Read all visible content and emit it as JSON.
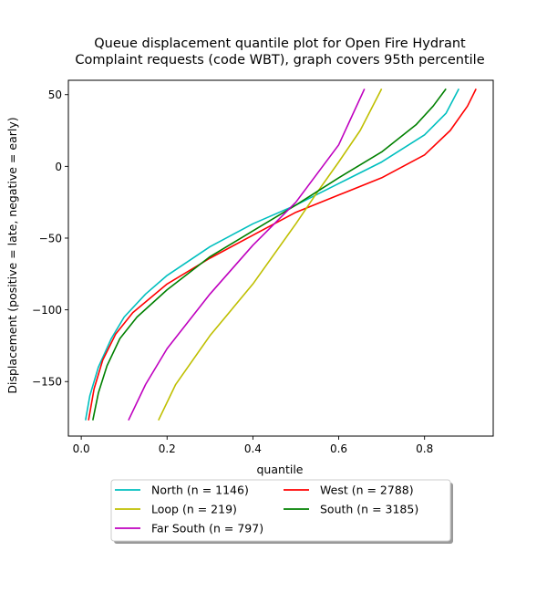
{
  "chart_data": {
    "type": "line",
    "title_line1": "Queue displacement quantile plot for Open Fire Hydrant",
    "title_line2": "Complaint  requests (code WBT), graph covers 95th percentile",
    "xlabel": "quantile",
    "ylabel": "Displacement (positive = late, negative = early)",
    "xlim": [
      -0.03,
      0.96
    ],
    "ylim": [
      -188,
      60
    ],
    "x_ticks": [
      0.0,
      0.2,
      0.4,
      0.6,
      0.8
    ],
    "x_tick_labels": [
      "0.0",
      "0.2",
      "0.4",
      "0.6",
      "0.8"
    ],
    "y_ticks": [
      50,
      0,
      -50,
      -100,
      -150
    ],
    "y_tick_labels": [
      "50",
      "0",
      "−50",
      "−100",
      "−150"
    ],
    "legend_position": "below plot, two columns",
    "series": [
      {
        "name": "North (n = 1146)",
        "color": "#00bfbf",
        "points": [
          [
            0.01,
            -177
          ],
          [
            0.02,
            -160
          ],
          [
            0.04,
            -140
          ],
          [
            0.07,
            -120
          ],
          [
            0.1,
            -105
          ],
          [
            0.15,
            -89
          ],
          [
            0.2,
            -76
          ],
          [
            0.3,
            -56
          ],
          [
            0.4,
            -40
          ],
          [
            0.5,
            -27
          ],
          [
            0.6,
            -12
          ],
          [
            0.7,
            3
          ],
          [
            0.8,
            22
          ],
          [
            0.85,
            37
          ],
          [
            0.88,
            54
          ]
        ]
      },
      {
        "name": "West (n = 2788)",
        "color": "#ff0000",
        "points": [
          [
            0.017,
            -177
          ],
          [
            0.03,
            -155
          ],
          [
            0.05,
            -135
          ],
          [
            0.08,
            -117
          ],
          [
            0.12,
            -102
          ],
          [
            0.2,
            -82
          ],
          [
            0.3,
            -64
          ],
          [
            0.4,
            -48
          ],
          [
            0.5,
            -32
          ],
          [
            0.6,
            -20
          ],
          [
            0.7,
            -8
          ],
          [
            0.8,
            8
          ],
          [
            0.86,
            25
          ],
          [
            0.9,
            42
          ],
          [
            0.92,
            54
          ]
        ]
      },
      {
        "name": "Loop (n = 219)",
        "color": "#bfbf00",
        "points": [
          [
            0.18,
            -177
          ],
          [
            0.22,
            -152
          ],
          [
            0.3,
            -118
          ],
          [
            0.4,
            -82
          ],
          [
            0.5,
            -40
          ],
          [
            0.55,
            -18
          ],
          [
            0.6,
            3
          ],
          [
            0.65,
            25
          ],
          [
            0.7,
            54
          ]
        ]
      },
      {
        "name": "South (n = 3185)",
        "color": "#008000",
        "points": [
          [
            0.027,
            -177
          ],
          [
            0.04,
            -158
          ],
          [
            0.06,
            -139
          ],
          [
            0.09,
            -120
          ],
          [
            0.13,
            -105
          ],
          [
            0.2,
            -86
          ],
          [
            0.3,
            -63
          ],
          [
            0.4,
            -45
          ],
          [
            0.5,
            -27
          ],
          [
            0.6,
            -8
          ],
          [
            0.7,
            10
          ],
          [
            0.78,
            29
          ],
          [
            0.82,
            42
          ],
          [
            0.85,
            54
          ]
        ]
      },
      {
        "name": "Far South (n = 797)",
        "color": "#bf00bf",
        "points": [
          [
            0.11,
            -177
          ],
          [
            0.15,
            -152
          ],
          [
            0.2,
            -127
          ],
          [
            0.3,
            -89
          ],
          [
            0.4,
            -55
          ],
          [
            0.5,
            -25
          ],
          [
            0.6,
            15
          ],
          [
            0.66,
            54
          ]
        ]
      }
    ]
  }
}
